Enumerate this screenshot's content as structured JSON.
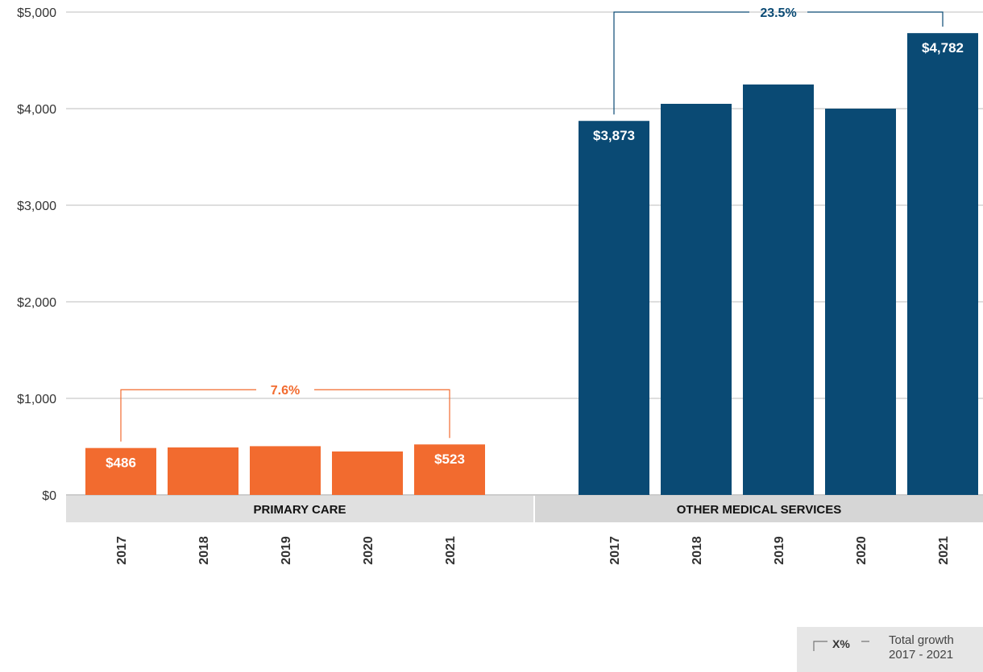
{
  "chart_data": {
    "type": "bar",
    "y_ticks": [
      "$0",
      "$1,000",
      "$2,000",
      "$3,000",
      "$4,000",
      "$5,000"
    ],
    "ylim": [
      0,
      5000
    ],
    "grid": true,
    "panels": [
      {
        "label": "PRIMARY CARE",
        "color": "#f26b2f",
        "categories": [
          "2017",
          "2018",
          "2019",
          "2020",
          "2021"
        ],
        "values": [
          486,
          492,
          505,
          450,
          523
        ],
        "data_labels": [
          "$486",
          "",
          "",
          "",
          "$523"
        ],
        "growth": "7.6%"
      },
      {
        "label": "OTHER MEDICAL SERVICES",
        "color": "#0a4a74",
        "categories": [
          "2017",
          "2018",
          "2019",
          "2020",
          "2021"
        ],
        "values": [
          3873,
          4050,
          4250,
          4000,
          4782
        ],
        "data_labels": [
          "$3,873",
          "",
          "",
          "",
          "$4,782"
        ],
        "growth": "23.5%"
      }
    ],
    "legend": {
      "symbol": "X%",
      "line1": "Total growth",
      "line2": "2017 - 2021"
    }
  }
}
